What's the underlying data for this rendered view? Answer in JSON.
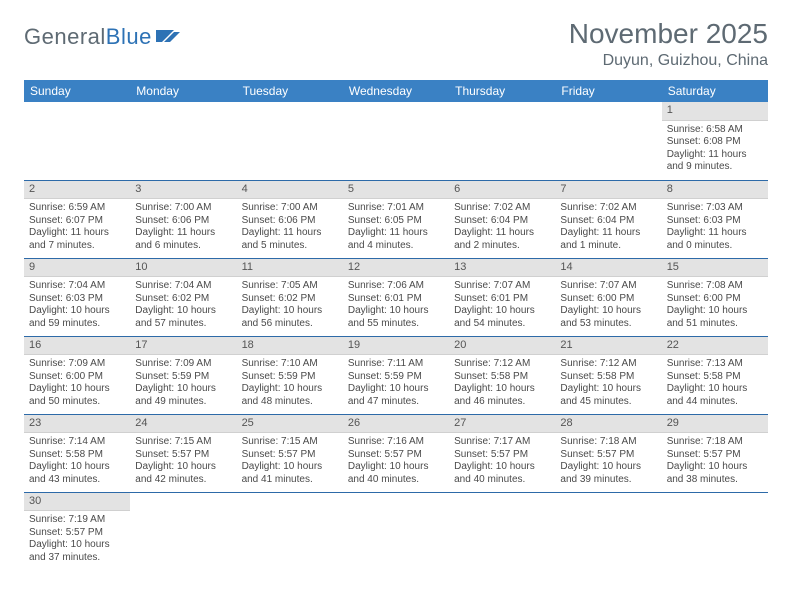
{
  "logo": {
    "text_general": "General",
    "text_blue": "Blue"
  },
  "title": "November 2025",
  "location": "Duyun, Guizhou, China",
  "header_bg": "#3a81c4",
  "daynum_bg": "#e3e3e3",
  "border_color": "#2d6aa8",
  "weekdays": [
    "Sunday",
    "Monday",
    "Tuesday",
    "Wednesday",
    "Thursday",
    "Friday",
    "Saturday"
  ],
  "weeks": [
    [
      null,
      null,
      null,
      null,
      null,
      null,
      {
        "n": "1",
        "sr": "Sunrise: 6:58 AM",
        "ss": "Sunset: 6:08 PM",
        "dl": "Daylight: 11 hours and 9 minutes."
      }
    ],
    [
      {
        "n": "2",
        "sr": "Sunrise: 6:59 AM",
        "ss": "Sunset: 6:07 PM",
        "dl": "Daylight: 11 hours and 7 minutes."
      },
      {
        "n": "3",
        "sr": "Sunrise: 7:00 AM",
        "ss": "Sunset: 6:06 PM",
        "dl": "Daylight: 11 hours and 6 minutes."
      },
      {
        "n": "4",
        "sr": "Sunrise: 7:00 AM",
        "ss": "Sunset: 6:06 PM",
        "dl": "Daylight: 11 hours and 5 minutes."
      },
      {
        "n": "5",
        "sr": "Sunrise: 7:01 AM",
        "ss": "Sunset: 6:05 PM",
        "dl": "Daylight: 11 hours and 4 minutes."
      },
      {
        "n": "6",
        "sr": "Sunrise: 7:02 AM",
        "ss": "Sunset: 6:04 PM",
        "dl": "Daylight: 11 hours and 2 minutes."
      },
      {
        "n": "7",
        "sr": "Sunrise: 7:02 AM",
        "ss": "Sunset: 6:04 PM",
        "dl": "Daylight: 11 hours and 1 minute."
      },
      {
        "n": "8",
        "sr": "Sunrise: 7:03 AM",
        "ss": "Sunset: 6:03 PM",
        "dl": "Daylight: 11 hours and 0 minutes."
      }
    ],
    [
      {
        "n": "9",
        "sr": "Sunrise: 7:04 AM",
        "ss": "Sunset: 6:03 PM",
        "dl": "Daylight: 10 hours and 59 minutes."
      },
      {
        "n": "10",
        "sr": "Sunrise: 7:04 AM",
        "ss": "Sunset: 6:02 PM",
        "dl": "Daylight: 10 hours and 57 minutes."
      },
      {
        "n": "11",
        "sr": "Sunrise: 7:05 AM",
        "ss": "Sunset: 6:02 PM",
        "dl": "Daylight: 10 hours and 56 minutes."
      },
      {
        "n": "12",
        "sr": "Sunrise: 7:06 AM",
        "ss": "Sunset: 6:01 PM",
        "dl": "Daylight: 10 hours and 55 minutes."
      },
      {
        "n": "13",
        "sr": "Sunrise: 7:07 AM",
        "ss": "Sunset: 6:01 PM",
        "dl": "Daylight: 10 hours and 54 minutes."
      },
      {
        "n": "14",
        "sr": "Sunrise: 7:07 AM",
        "ss": "Sunset: 6:00 PM",
        "dl": "Daylight: 10 hours and 53 minutes."
      },
      {
        "n": "15",
        "sr": "Sunrise: 7:08 AM",
        "ss": "Sunset: 6:00 PM",
        "dl": "Daylight: 10 hours and 51 minutes."
      }
    ],
    [
      {
        "n": "16",
        "sr": "Sunrise: 7:09 AM",
        "ss": "Sunset: 6:00 PM",
        "dl": "Daylight: 10 hours and 50 minutes."
      },
      {
        "n": "17",
        "sr": "Sunrise: 7:09 AM",
        "ss": "Sunset: 5:59 PM",
        "dl": "Daylight: 10 hours and 49 minutes."
      },
      {
        "n": "18",
        "sr": "Sunrise: 7:10 AM",
        "ss": "Sunset: 5:59 PM",
        "dl": "Daylight: 10 hours and 48 minutes."
      },
      {
        "n": "19",
        "sr": "Sunrise: 7:11 AM",
        "ss": "Sunset: 5:59 PM",
        "dl": "Daylight: 10 hours and 47 minutes."
      },
      {
        "n": "20",
        "sr": "Sunrise: 7:12 AM",
        "ss": "Sunset: 5:58 PM",
        "dl": "Daylight: 10 hours and 46 minutes."
      },
      {
        "n": "21",
        "sr": "Sunrise: 7:12 AM",
        "ss": "Sunset: 5:58 PM",
        "dl": "Daylight: 10 hours and 45 minutes."
      },
      {
        "n": "22",
        "sr": "Sunrise: 7:13 AM",
        "ss": "Sunset: 5:58 PM",
        "dl": "Daylight: 10 hours and 44 minutes."
      }
    ],
    [
      {
        "n": "23",
        "sr": "Sunrise: 7:14 AM",
        "ss": "Sunset: 5:58 PM",
        "dl": "Daylight: 10 hours and 43 minutes."
      },
      {
        "n": "24",
        "sr": "Sunrise: 7:15 AM",
        "ss": "Sunset: 5:57 PM",
        "dl": "Daylight: 10 hours and 42 minutes."
      },
      {
        "n": "25",
        "sr": "Sunrise: 7:15 AM",
        "ss": "Sunset: 5:57 PM",
        "dl": "Daylight: 10 hours and 41 minutes."
      },
      {
        "n": "26",
        "sr": "Sunrise: 7:16 AM",
        "ss": "Sunset: 5:57 PM",
        "dl": "Daylight: 10 hours and 40 minutes."
      },
      {
        "n": "27",
        "sr": "Sunrise: 7:17 AM",
        "ss": "Sunset: 5:57 PM",
        "dl": "Daylight: 10 hours and 40 minutes."
      },
      {
        "n": "28",
        "sr": "Sunrise: 7:18 AM",
        "ss": "Sunset: 5:57 PM",
        "dl": "Daylight: 10 hours and 39 minutes."
      },
      {
        "n": "29",
        "sr": "Sunrise: 7:18 AM",
        "ss": "Sunset: 5:57 PM",
        "dl": "Daylight: 10 hours and 38 minutes."
      }
    ],
    [
      {
        "n": "30",
        "sr": "Sunrise: 7:19 AM",
        "ss": "Sunset: 5:57 PM",
        "dl": "Daylight: 10 hours and 37 minutes."
      },
      null,
      null,
      null,
      null,
      null,
      null
    ]
  ]
}
